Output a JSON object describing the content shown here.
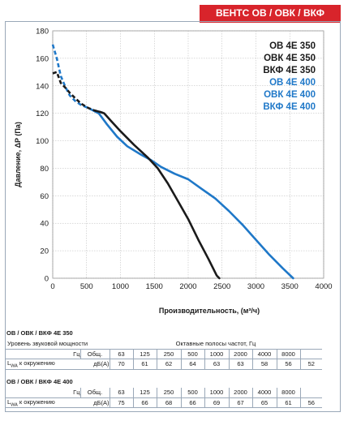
{
  "header": {
    "badge": "ВЕНТС ОВ / ОВК / ВКФ"
  },
  "chart_data": {
    "type": "line",
    "xlabel": "Производительность, (м³/ч)",
    "ylabel": "Давление, ΔP (Па)",
    "xlim": [
      0,
      4000
    ],
    "ylim": [
      0,
      180
    ],
    "xticks": [
      "0",
      "500",
      "1000",
      "1500",
      "2000",
      "2500",
      "3000",
      "3500",
      "4000"
    ],
    "yticks": [
      "0",
      "20",
      "40",
      "60",
      "80",
      "100",
      "120",
      "140",
      "160",
      "180"
    ],
    "grid": true,
    "legend_position": "top-right",
    "series": [
      {
        "name": "ОВ 4Е 350 / ОВК 4Е 350 / ВКФ 4Е 350",
        "color": "#1a1a1a",
        "points": [
          [
            0,
            149
          ],
          [
            60,
            150
          ],
          [
            120,
            142
          ],
          [
            180,
            139
          ],
          [
            250,
            135
          ],
          [
            330,
            131
          ],
          [
            420,
            127
          ],
          [
            520,
            124
          ],
          [
            620,
            122
          ],
          [
            700,
            121
          ],
          [
            760,
            120
          ],
          [
            850,
            115
          ],
          [
            1000,
            107
          ],
          [
            1200,
            97
          ],
          [
            1400,
            88
          ],
          [
            1550,
            80
          ],
          [
            1700,
            69
          ],
          [
            1850,
            56
          ],
          [
            2000,
            43
          ],
          [
            2150,
            28
          ],
          [
            2300,
            14
          ],
          [
            2420,
            2
          ],
          [
            2460,
            0
          ]
        ]
      },
      {
        "name": "ОВ 4Е 400 / ОВК 4Е 400 / ВКФ 4Е 400",
        "color": "#1f78c8",
        "points": [
          [
            0,
            170
          ],
          [
            60,
            160
          ],
          [
            120,
            147
          ],
          [
            180,
            140
          ],
          [
            250,
            133
          ],
          [
            330,
            129
          ],
          [
            420,
            126
          ],
          [
            520,
            124
          ],
          [
            600,
            122
          ],
          [
            680,
            120
          ],
          [
            800,
            112
          ],
          [
            950,
            103
          ],
          [
            1100,
            96
          ],
          [
            1300,
            90
          ],
          [
            1450,
            86
          ],
          [
            1600,
            81
          ],
          [
            1800,
            76
          ],
          [
            2000,
            72
          ],
          [
            2200,
            65
          ],
          [
            2400,
            58
          ],
          [
            2600,
            49
          ],
          [
            2800,
            39
          ],
          [
            3000,
            28
          ],
          [
            3200,
            17
          ],
          [
            3400,
            7
          ],
          [
            3550,
            0
          ]
        ]
      }
    ],
    "legend": [
      {
        "label": "ОВ 4Е 350",
        "color": "#1a1a1a"
      },
      {
        "label": "ОВК 4Е 350",
        "color": "#1a1a1a"
      },
      {
        "label": "ВКФ 4Е 350",
        "color": "#1a1a1a"
      },
      {
        "label": "ОВ 4Е 400",
        "color": "#1f78c8"
      },
      {
        "label": "ОВК 4Е 400",
        "color": "#1f78c8"
      },
      {
        "label": "ВКФ 4Е 400",
        "color": "#1f78c8"
      }
    ]
  },
  "sound_table": {
    "header_labels": {
      "level": "Уровень звуковой мощности",
      "bands": "Октавные полосы частот, Гц",
      "hz": "Гц",
      "total": "Общ.",
      "lwa_main": "L",
      "lwa_sub": "WA",
      "lwa_rest": " к окружению",
      "unit": "дБ(A)"
    },
    "frequencies": [
      "63",
      "125",
      "250",
      "500",
      "1000",
      "2000",
      "4000",
      "8000"
    ],
    "sections": [
      {
        "title": "ОВ / ОВК / ВКФ 4Е 350",
        "total": "70",
        "values": [
          "61",
          "62",
          "64",
          "63",
          "63",
          "58",
          "56",
          "52"
        ]
      },
      {
        "title": "ОВ / ОВК / ВКФ 4Е 400",
        "total": "75",
        "values": [
          "66",
          "68",
          "66",
          "69",
          "67",
          "65",
          "61",
          "56"
        ]
      }
    ]
  }
}
